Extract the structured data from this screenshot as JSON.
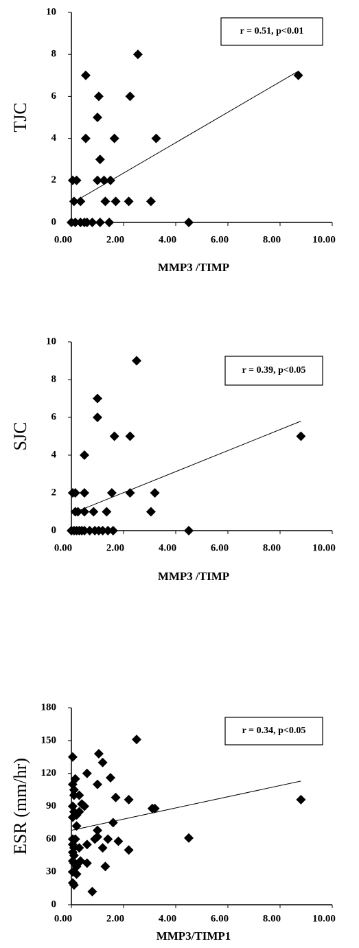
{
  "chart_data": [
    {
      "type": "scatter",
      "x_label": "MMP3 /TIMP",
      "y_label": "TJC",
      "annotation": "r = 0.51, p<0.01",
      "color": "#000000",
      "x": [
        8.7,
        2.55,
        2.25,
        0.55,
        1.05,
        1.0,
        0.55,
        1.65,
        3.25,
        1.1,
        1.0,
        1.25,
        1.5,
        0.05,
        0.2,
        0.1,
        0.35,
        1.3,
        1.7,
        2.2,
        3.05,
        0.0,
        0.15,
        0.35,
        0.5,
        0.6,
        0.8,
        1.1,
        1.45,
        4.5
      ],
      "values": [
        7,
        8,
        6,
        7,
        6,
        5,
        4,
        4,
        4,
        3,
        2,
        2,
        2,
        2,
        2,
        1,
        1,
        1,
        1,
        1,
        1,
        0,
        0,
        0,
        0,
        0,
        0,
        0,
        0,
        0
      ],
      "trendline": {
        "x": [
          0,
          8.7
        ],
        "y": [
          0.9,
          7.2
        ]
      },
      "xlim": [
        0,
        10
      ],
      "ylim": [
        0,
        10
      ],
      "xticks": [
        {
          "value": 0,
          "label": "0.00"
        },
        {
          "value": 2,
          "label": "2.00"
        },
        {
          "value": 4,
          "label": "4.00"
        },
        {
          "value": 6,
          "label": "6.00"
        },
        {
          "value": 8,
          "label": "8.00"
        },
        {
          "value": 10,
          "label": "10.00"
        }
      ],
      "yticks": [
        0,
        2,
        4,
        6,
        8,
        10
      ]
    },
    {
      "type": "scatter",
      "x_label": "MMP3 /TIMP",
      "y_label": "SJC",
      "annotation": "r = 0.39, p<0.05",
      "color": "#000000",
      "x": [
        8.8,
        2.5,
        1.0,
        1.0,
        1.65,
        2.25,
        0.5,
        0.05,
        0.15,
        0.5,
        1.55,
        2.25,
        3.2,
        0.15,
        0.25,
        0.5,
        0.85,
        1.35,
        3.05,
        0.0,
        0.1,
        0.2,
        0.3,
        0.4,
        0.5,
        0.7,
        0.9,
        1.05,
        1.2,
        1.4,
        1.6,
        4.5
      ],
      "values": [
        5,
        9,
        7,
        6,
        5,
        5,
        4,
        2,
        2,
        2,
        2,
        2,
        2,
        1,
        1,
        1,
        1,
        1,
        1,
        0,
        0,
        0,
        0,
        0,
        0,
        0,
        0,
        0,
        0,
        0,
        0,
        0
      ],
      "trendline": {
        "x": [
          0,
          8.8
        ],
        "y": [
          0.9,
          5.8
        ]
      },
      "xlim": [
        0,
        10
      ],
      "ylim": [
        0,
        10
      ],
      "xticks": [
        {
          "value": 0,
          "label": "0.00"
        },
        {
          "value": 2,
          "label": "2.00"
        },
        {
          "value": 4,
          "label": "4.00"
        },
        {
          "value": 6,
          "label": "6.00"
        },
        {
          "value": 8,
          "label": "8.00"
        },
        {
          "value": 10,
          "label": "10.00"
        }
      ],
      "yticks": [
        0,
        2,
        4,
        6,
        8,
        10
      ]
    },
    {
      "type": "scatter",
      "x_label": "MMP3/TIMP1",
      "y_label": "ESR (mm/hr)",
      "annotation": "r = 0.34, p<0.05",
      "color": "#000000",
      "x": [
        0.05,
        0.05,
        0.1,
        0.15,
        0.1,
        0.3,
        0.05,
        0.1,
        0.05,
        0.2,
        0.3,
        0.4,
        0.5,
        0.6,
        0.05,
        0.05,
        0.1,
        0.05,
        0.1,
        0.05,
        0.1,
        0.2,
        0.05,
        0.05,
        0.1,
        0.3,
        0.35,
        0.6,
        0.6,
        0.8,
        0.9,
        1.0,
        1.0,
        1.05,
        1.0,
        1.2,
        1.2,
        1.3,
        1.4,
        1.5,
        1.6,
        1.7,
        1.8,
        2.2,
        2.2,
        2.5,
        3.1,
        3.2,
        4.5,
        8.8,
        0.2,
        0.15,
        0.2
      ],
      "values": [
        135,
        110,
        105,
        115,
        100,
        100,
        90,
        85,
        80,
        82,
        85,
        92,
        90,
        120,
        60,
        55,
        52,
        48,
        45,
        40,
        38,
        35,
        30,
        20,
        18,
        52,
        40,
        38,
        55,
        12,
        60,
        68,
        62,
        138,
        110,
        130,
        52,
        35,
        60,
        116,
        75,
        98,
        58,
        50,
        96,
        151,
        88,
        88,
        61,
        96,
        28,
        60,
        72
      ],
      "trendline": {
        "x": [
          0,
          8.8
        ],
        "y": [
          68,
          113
        ]
      },
      "xlim": [
        0,
        10
      ],
      "ylim": [
        0,
        180
      ],
      "xticks": [
        {
          "value": 0,
          "label": "0.00"
        },
        {
          "value": 2,
          "label": "2.00"
        },
        {
          "value": 4,
          "label": "4.00"
        },
        {
          "value": 6,
          "label": "6.00"
        },
        {
          "value": 8,
          "label": "8.00"
        },
        {
          "value": 10,
          "label": "10.00"
        }
      ],
      "yticks": [
        0,
        30,
        60,
        90,
        120,
        150,
        180
      ]
    }
  ]
}
